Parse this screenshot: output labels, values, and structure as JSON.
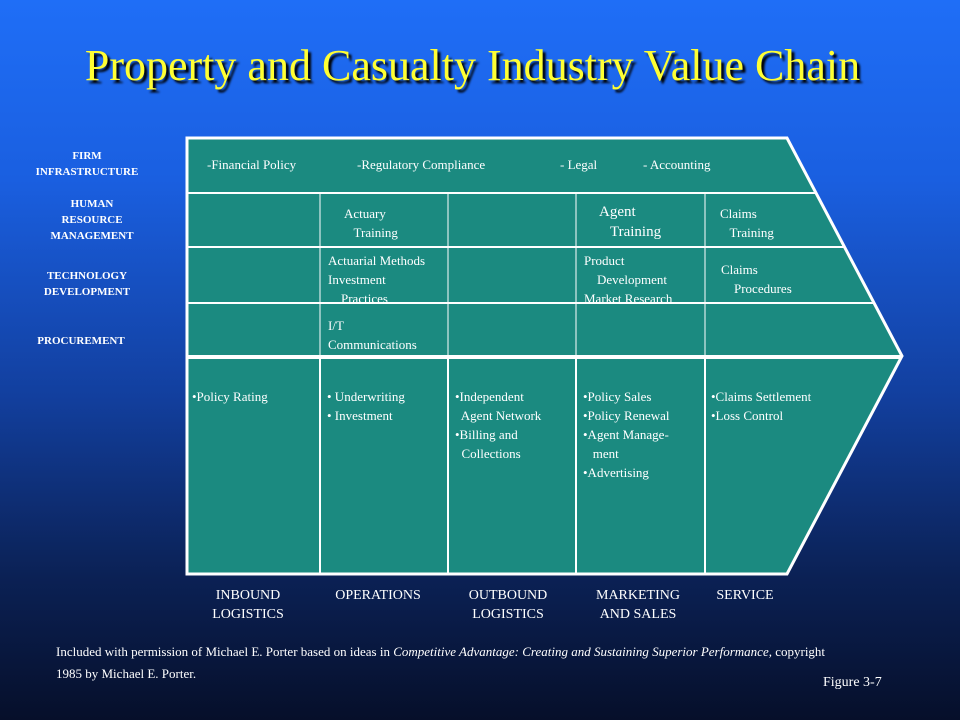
{
  "title": "Property and Casualty Industry Value Chain",
  "support_labels": {
    "firm": "FIRM\nINFRASTRUCTURE",
    "hrm": "HUMAN\nRESOURCE\nMANAGEMENT",
    "tech": "TECHNOLOGY\nDEVELOPMENT",
    "proc": "PROCUREMENT"
  },
  "infrastructure_row": {
    "financial": "-Financial Policy",
    "regulatory": "-Regulatory Compliance",
    "legal": "- Legal",
    "accounting": "- Accounting"
  },
  "hrm_row": {
    "actuary": "Actuary\n   Training",
    "agent": "Agent\n   Training",
    "claims": "Claims\n   Training"
  },
  "tech_row": {
    "actuarial": "Actuarial Methods\nInvestment\n    Practices",
    "product": "Product\n    Development\nMarket Research",
    "claims": "Claims\n    Procedures"
  },
  "proc_row": {
    "it": "I/T\nCommunications"
  },
  "primary_contents": {
    "inbound": "•Policy Rating",
    "operations": "• Underwriting\n• Investment",
    "outbound": "•Independent\n  Agent Network\n•Billing and\n  Collections",
    "marketing": "•Policy Sales\n•Policy Renewal\n•Agent Manage-\n   ment\n•Advertising",
    "service": "•Claims Settlement\n•Loss Control"
  },
  "primary_activities": {
    "inbound": "INBOUND\nLOGISTICS",
    "operations": "OPERATIONS",
    "outbound": "OUTBOUND\nLOGISTICS",
    "marketing": "MARKETING\nAND SALES",
    "service": "SERVICE"
  },
  "credit": {
    "part1": "Included with permission of Michael E. Porter based on ideas in ",
    "book": "Competitive Advantage: Creating and Sustaining Superior Performance,",
    "part2": " copyright 1985 by Michael E. Porter."
  },
  "figure_label": "Figure 3-7",
  "colors": {
    "box": "#1b8a80",
    "border": "#ffffff",
    "title": "#ffff33"
  }
}
